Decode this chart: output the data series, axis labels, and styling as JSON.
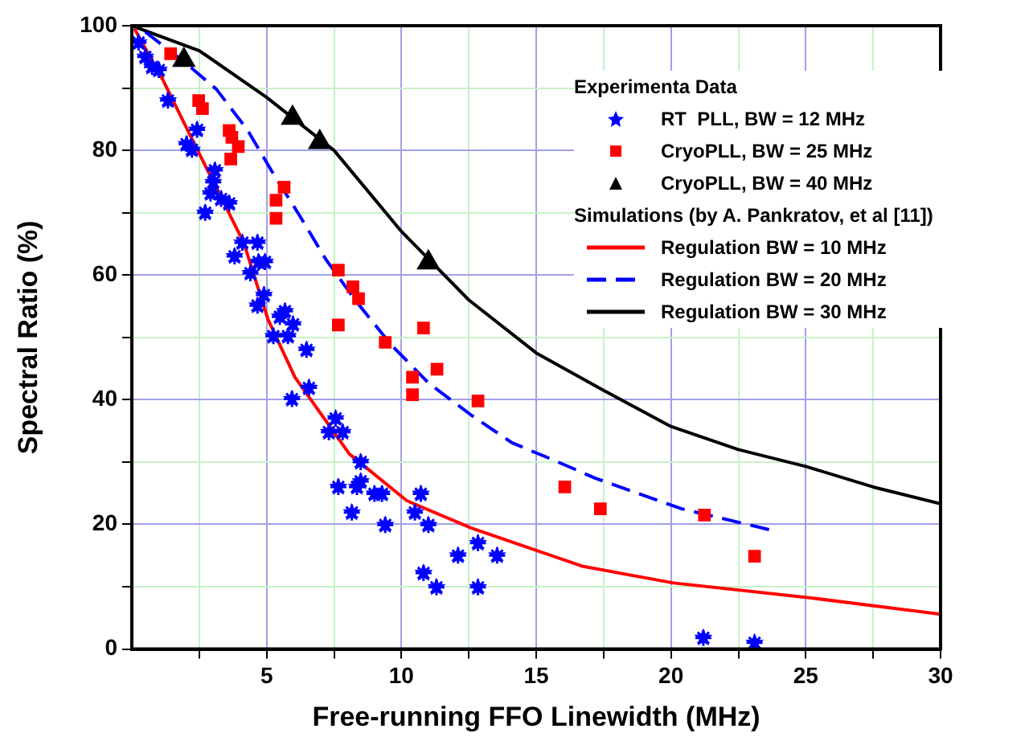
{
  "chart_data": {
    "type": "scatter",
    "xlabel": "Free-running FFO Linewidth (MHz)",
    "ylabel": "Spectral Ratio (%)",
    "legend_title": "Experimenta Data",
    "annotations": [
      "Simulations (by A. Pankratov, et al [11])"
    ],
    "xlim": [
      0,
      30
    ],
    "ylim": [
      0,
      100
    ],
    "xticks": [
      {
        "value": 2.5,
        "label": null
      },
      5,
      {
        "value": 7.5,
        "label": null
      },
      10,
      {
        "value": 12.5,
        "label": null
      },
      15,
      {
        "value": 17.5,
        "label": null
      },
      20,
      {
        "value": 22.5,
        "label": null
      },
      25,
      {
        "value": 27.5,
        "label": null
      },
      30
    ],
    "yticks": [
      0,
      {
        "value": 10,
        "label": null
      },
      20,
      {
        "value": 30,
        "label": null
      },
      40,
      {
        "value": 50,
        "label": null
      },
      60,
      {
        "value": 70,
        "label": null
      },
      80,
      {
        "value": 90,
        "label": null
      },
      100
    ],
    "grid": true,
    "legend": "top right",
    "series": [
      {
        "name": "RT  PLL, BW = 12 MHz",
        "type": "scatter",
        "marker": "star",
        "color": "#0000ff",
        "x": [
          0.25,
          0.5,
          0.75,
          1.0,
          1.34,
          2.42,
          2.03,
          2.23,
          3.08,
          3.02,
          2.92,
          3.31,
          3.61,
          2.72,
          4.1,
          4.66,
          3.81,
          4.7,
          4.94,
          4.4,
          4.9,
          4.66,
          5.49,
          5.68,
          5.98,
          5.25,
          5.79,
          6.48,
          6.57,
          5.94,
          7.56,
          7.31,
          7.82,
          8.49,
          8.49,
          8.35,
          7.66,
          9.0,
          9.28,
          8.16,
          9.4,
          10.72,
          10.5,
          11.0,
          12.84,
          12.1,
          13.55,
          10.82,
          11.3,
          12.84,
          21.2,
          23.1
        ],
        "values": [
          97.3,
          95,
          93.4,
          92.9,
          88,
          83.3,
          81,
          80.1,
          76.8,
          74.9,
          73.1,
          72.2,
          71.5,
          70,
          65.2,
          65.2,
          63,
          62.1,
          62.1,
          60.3,
          56.8,
          55.1,
          53.3,
          54.2,
          52.1,
          50.2,
          50.2,
          48,
          41.9,
          40.1,
          37,
          34.8,
          34.8,
          30,
          26.9,
          26,
          26,
          24.9,
          24.9,
          21.9,
          19.9,
          24.9,
          21.9,
          19.9,
          17,
          15,
          15,
          12.2,
          9.9,
          9.9,
          1.8,
          1.0
        ]
      },
      {
        "name": "CryoPLL, BW = 25 MHz",
        "type": "scatter",
        "marker": "square",
        "color": "#ff0000",
        "x": [
          1.44,
          2.48,
          2.62,
          3.61,
          3.71,
          3.95,
          3.67,
          5.65,
          5.35,
          5.35,
          7.66,
          8.2,
          8.41,
          7.66,
          10.82,
          9.4,
          10.41,
          11.32,
          10.41,
          12.84,
          16.06,
          17.38,
          21.24,
          23.1
        ],
        "values": [
          95.5,
          88,
          86.7,
          83.2,
          82.1,
          80.6,
          78.6,
          74.1,
          72,
          69.1,
          60.8,
          58.1,
          56.2,
          52,
          51.5,
          49.2,
          43.6,
          44.9,
          40.8,
          39.8,
          26,
          22.5,
          21.5,
          14.9
        ]
      },
      {
        "name": "CryoPLL, BW = 40 MHz",
        "type": "scatter",
        "marker": "triangle",
        "color": "#000000",
        "x": [
          1.93,
          5.96,
          6.97,
          11.0
        ],
        "values": [
          94.5,
          85.2,
          81.3,
          62
        ]
      },
      {
        "name": "Regulation BW = 10 MHz",
        "type": "line",
        "marker": "none",
        "line_style": "solid",
        "color": "#ff0000",
        "x": [
          0.1,
          1.13,
          2.13,
          4.15,
          5.05,
          6.05,
          8.07,
          10.2,
          12.6,
          16.7,
          20.1,
          25.2,
          30
        ],
        "values": [
          99.5,
          91.5,
          82.7,
          65.2,
          52.9,
          43.6,
          31.3,
          23.8,
          19.4,
          13.3,
          10.6,
          8.2,
          5.6
        ]
      },
      {
        "name": "Regulation BW = 20 MHz",
        "type": "line",
        "marker": "none",
        "line_style": "dashed",
        "color": "#0000ff",
        "x": [
          0.5,
          2,
          3.14,
          4.3,
          5.2,
          6.2,
          7.2,
          8.3,
          9.6,
          11.0,
          12.6,
          14.1,
          15.6,
          17.2,
          20.4,
          23.8
        ],
        "values": [
          99,
          94,
          89.8,
          83.2,
          76.6,
          69.7,
          62.5,
          55.9,
          48.9,
          42.7,
          37.5,
          33.1,
          30.4,
          27.4,
          22.5,
          19
        ]
      },
      {
        "name": "Regulation BW = 30 MHz",
        "type": "line",
        "marker": "none",
        "line_style": "solid",
        "color": "#000000",
        "x": [
          0,
          2.5,
          5,
          7.5,
          10,
          12.5,
          15,
          17.5,
          20,
          22.5,
          25,
          27.5,
          30
        ],
        "values": [
          100,
          96,
          88.5,
          80,
          67,
          56,
          47.5,
          41.5,
          35.7,
          32,
          29.3,
          26,
          23.3
        ]
      }
    ]
  }
}
